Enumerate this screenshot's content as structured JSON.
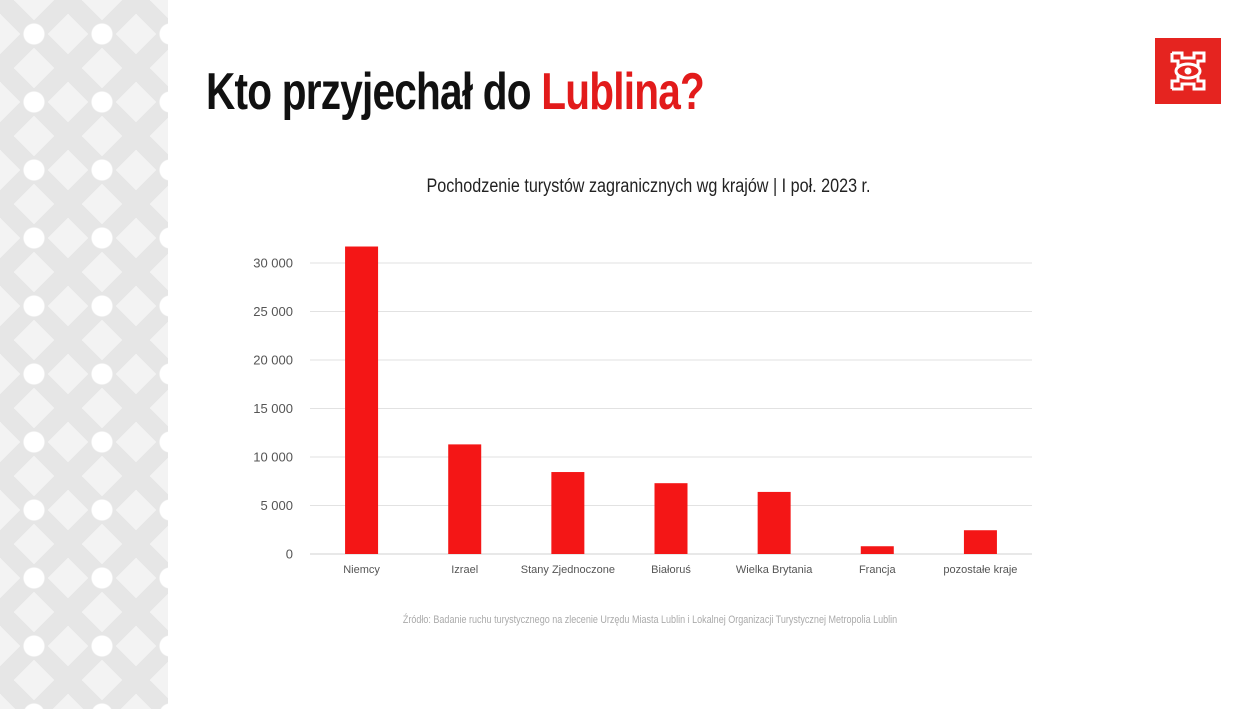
{
  "header": {
    "title_prefix": "Kto przyjechał do ",
    "title_accent": "Lublina?",
    "accent_color": "#e21b1b",
    "logo": "lublin-logo"
  },
  "chart_data": {
    "type": "bar",
    "title": "Pochodzenie turystów zagranicznych wg krajów | I poł. 2023 r.",
    "categories": [
      "Niemcy",
      "Izrael",
      "Stany Zjednoczone",
      "Białoruś",
      "Wielka Brytania",
      "Francja",
      "pozostałe kraje"
    ],
    "values": [
      31700,
      11300,
      8450,
      7300,
      6400,
      800,
      2450
    ],
    "yticks": [
      0,
      5000,
      10000,
      15000,
      20000,
      25000,
      30000
    ],
    "ytick_labels": [
      "0",
      "5 000",
      "10 000",
      "15 000",
      "20 000",
      "25 000",
      "30 000"
    ],
    "ylim": [
      0,
      30000
    ],
    "grid": true,
    "bar_color": "#f41616",
    "xlabel": "",
    "ylabel": ""
  },
  "source": "Źródło: Badanie ruchu turystycznego na zlecenie Urzędu Miasta Lublin i Lokalnej Organizacji Turystycznej Metropolia Lublin"
}
